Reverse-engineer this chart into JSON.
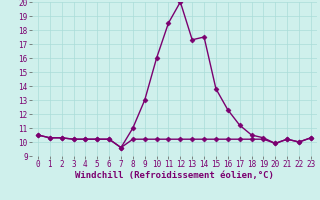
{
  "x": [
    0,
    1,
    2,
    3,
    4,
    5,
    6,
    7,
    8,
    9,
    10,
    11,
    12,
    13,
    14,
    15,
    16,
    17,
    18,
    19,
    20,
    21,
    22,
    23
  ],
  "y_curve": [
    10.5,
    10.3,
    10.3,
    10.2,
    10.2,
    10.2,
    10.2,
    9.6,
    11.0,
    13.0,
    16.0,
    18.5,
    20.0,
    17.3,
    17.5,
    13.8,
    12.3,
    11.2,
    10.5,
    10.3,
    9.9,
    10.2,
    10.0,
    10.3
  ],
  "y_flat": [
    10.5,
    10.3,
    10.3,
    10.2,
    10.2,
    10.2,
    10.2,
    9.6,
    10.2,
    10.2,
    10.2,
    10.2,
    10.2,
    10.2,
    10.2,
    10.2,
    10.2,
    10.2,
    10.2,
    10.2,
    9.9,
    10.2,
    10.0,
    10.3
  ],
  "color": "#7b0070",
  "bg_color": "#cff0ec",
  "grid_color": "#aaddd8",
  "xlabel": "Windchill (Refroidissement éolien,°C)",
  "ylim": [
    9,
    20
  ],
  "xlim_min": -0.5,
  "xlim_max": 23.5,
  "yticks": [
    9,
    10,
    11,
    12,
    13,
    14,
    15,
    16,
    17,
    18,
    19,
    20
  ],
  "xticks": [
    0,
    1,
    2,
    3,
    4,
    5,
    6,
    7,
    8,
    9,
    10,
    11,
    12,
    13,
    14,
    15,
    16,
    17,
    18,
    19,
    20,
    21,
    22,
    23
  ],
  "marker": "D",
  "markersize": 2.5,
  "linewidth": 1.0,
  "xlabel_fontsize": 6.5,
  "tick_fontsize": 5.5
}
